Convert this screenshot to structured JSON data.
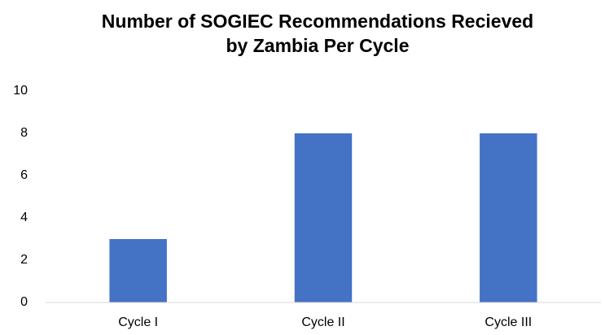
{
  "chart_data": {
    "type": "bar",
    "title": [
      "Number of SOGIEC Recommendations Recieved",
      "by Zambia Per Cycle"
    ],
    "categories": [
      "Cycle I",
      "Cycle II",
      "Cycle III"
    ],
    "values": [
      3,
      8,
      8
    ],
    "color": "#4472c4",
    "ylim": [
      0,
      10
    ],
    "yticks": [
      0,
      2,
      4,
      6,
      8,
      10
    ],
    "grid": false
  }
}
